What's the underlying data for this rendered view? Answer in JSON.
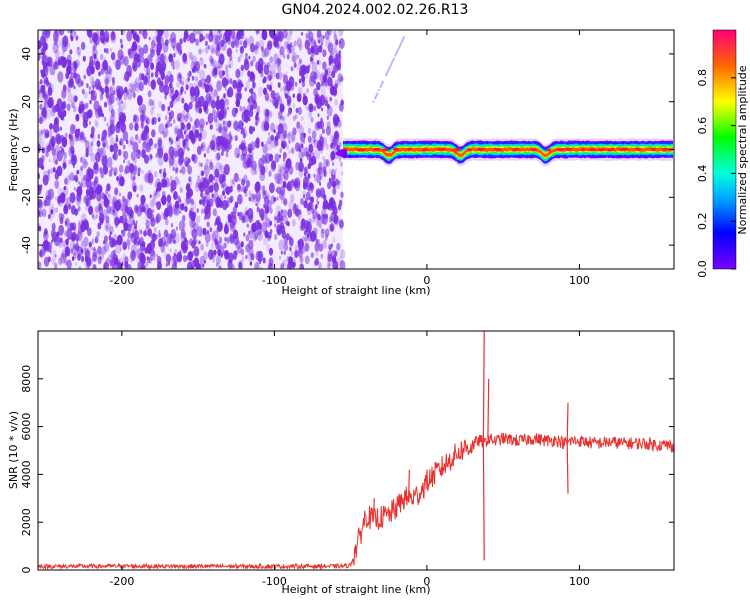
{
  "title": "GN04.2024.002.02.26.R13",
  "colors": {
    "snr_line": "#e8322e",
    "speckle": "#7a2ee0",
    "axis": "#000000"
  },
  "chart_data": [
    {
      "type": "heatmap",
      "xlabel": "Height of straight line (km)",
      "ylabel": "Frequency (Hz)",
      "xlim": [
        -255,
        162
      ],
      "ylim": [
        -50,
        50
      ],
      "x_ticks": [
        -200,
        -100,
        0,
        100
      ],
      "y_ticks": [
        -40,
        -20,
        0,
        20,
        40
      ],
      "noise_region_x": [
        -255,
        -55
      ],
      "signal_band": {
        "x": [
          -55,
          162
        ],
        "center_freq": 0,
        "dips": [
          {
            "x": -25,
            "freq": -4
          },
          {
            "x": 22,
            "freq": -4
          },
          {
            "x": 78,
            "freq": -4
          }
        ]
      },
      "faint_streak": {
        "x": [
          -35,
          -15
        ],
        "freq": [
          20,
          47
        ]
      },
      "colorbar": {
        "label": "Normalized spectral amplitude",
        "range": [
          0.0,
          1.0
        ],
        "ticks": [
          "0.0",
          "0.2",
          "0.4",
          "0.6",
          "0.8"
        ]
      }
    },
    {
      "type": "line",
      "xlabel": "Height of straight line (km)",
      "ylabel": "SNR (10 * v/v)",
      "xlim": [
        -255,
        162
      ],
      "ylim": [
        0,
        10000
      ],
      "x_ticks": [
        -200,
        -100,
        0,
        100
      ],
      "y_ticks": [
        0,
        2000,
        4000,
        6000,
        8000
      ],
      "series": [
        {
          "x": [
            -255,
            -200,
            -100,
            -55,
            -50,
            -45,
            -40,
            -35,
            -30,
            -25,
            -20,
            -15,
            -10,
            -5,
            0,
            5,
            10,
            15,
            20,
            25,
            30,
            33,
            36,
            38,
            40,
            45,
            50,
            60,
            70,
            80,
            85,
            90,
            95,
            100,
            110,
            120,
            130,
            140,
            150,
            162
          ],
          "y": [
            150,
            160,
            150,
            160,
            200,
            1200,
            2300,
            2100,
            2200,
            2300,
            2600,
            3000,
            3000,
            3200,
            3700,
            4000,
            4300,
            4600,
            4900,
            5100,
            5200,
            5400,
            5400,
            5300,
            5500,
            5400,
            5500,
            5400,
            5500,
            5400,
            5450,
            5300,
            5400,
            5400,
            5300,
            5350,
            5300,
            5300,
            5250,
            5200
          ]
        }
      ],
      "spikes": [
        {
          "x": 37,
          "y": 10000
        },
        {
          "x": 37,
          "y": 400
        },
        {
          "x": 40,
          "y": 8000
        },
        {
          "x": 92,
          "y": 7000
        },
        {
          "x": 92,
          "y": 3200
        },
        {
          "x": -35,
          "y": 3000
        },
        {
          "x": -12,
          "y": 4200
        }
      ]
    }
  ]
}
